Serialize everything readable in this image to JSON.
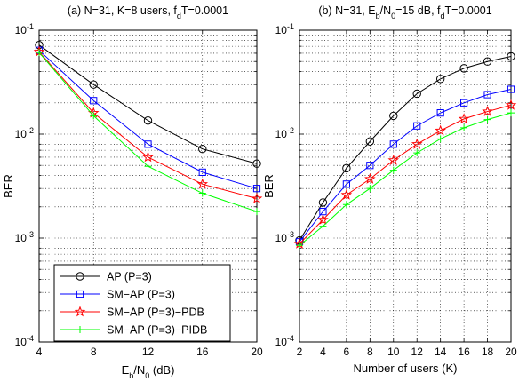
{
  "chart_data": [
    {
      "type": "line",
      "title": "(a) N=31, K=8 users, f_dT=0.0001",
      "title_parts": [
        "(a) N=31, K=8 users, f",
        "d",
        "T=0.0001"
      ],
      "xlabel": "E_b/N_0 (dB)",
      "xlabel_parts": [
        "E",
        "b",
        "/N",
        "0",
        " (dB)"
      ],
      "ylabel": "BER",
      "x": [
        4,
        8,
        12,
        16,
        20
      ],
      "xticks": [
        "4",
        "8",
        "12",
        "16",
        "20"
      ],
      "xlim": [
        4,
        20
      ],
      "ylim": [
        0.0001,
        0.1
      ],
      "yscale": "log",
      "yticks": [
        {
          "base": "10",
          "exp": "-4"
        },
        {
          "base": "10",
          "exp": "-3"
        },
        {
          "base": "10",
          "exp": "-2"
        },
        {
          "base": "10",
          "exp": "-1"
        }
      ],
      "grid": true,
      "legend_position": "bottom-left",
      "series": [
        {
          "name": "AP (P=3)",
          "color": "#000000",
          "marker": "circle",
          "values": [
            0.072,
            0.03,
            0.0135,
            0.0072,
            0.0052
          ]
        },
        {
          "name": "SM−AP (P=3)",
          "color": "#0000ff",
          "marker": "square",
          "values": [
            0.064,
            0.021,
            0.008,
            0.0043,
            0.003
          ]
        },
        {
          "name": "SM−AP (P=3)−PDB",
          "color": "#ff0000",
          "marker": "star",
          "values": [
            0.062,
            0.016,
            0.006,
            0.0033,
            0.0024
          ]
        },
        {
          "name": "SM−AP (P=3)−PIDB",
          "color": "#00ff00",
          "marker": "plus",
          "values": [
            0.061,
            0.015,
            0.0049,
            0.0027,
            0.0018
          ]
        }
      ]
    },
    {
      "type": "line",
      "title": "(b) N=31, E_b/N_0=15 dB, f_dT=0.0001",
      "title_parts": [
        "(b) N=31, E",
        "b",
        "/N",
        "0",
        "=15 dB, f",
        "d",
        "T=0.0001"
      ],
      "xlabel": "Number of users (K)",
      "ylabel": "BER",
      "x": [
        2,
        4,
        6,
        8,
        10,
        12,
        14,
        16,
        18,
        20
      ],
      "xticks": [
        "2",
        "4",
        "6",
        "8",
        "10",
        "12",
        "14",
        "16",
        "18",
        "20"
      ],
      "xlim": [
        2,
        20
      ],
      "ylim": [
        0.0001,
        0.1
      ],
      "yscale": "log",
      "yticks": [
        {
          "base": "10",
          "exp": "-4"
        },
        {
          "base": "10",
          "exp": "-3"
        },
        {
          "base": "10",
          "exp": "-2"
        },
        {
          "base": "10",
          "exp": "-1"
        }
      ],
      "grid": true,
      "series": [
        {
          "name": "AP (P=3)",
          "color": "#000000",
          "marker": "circle",
          "values": [
            0.00095,
            0.0022,
            0.0047,
            0.0085,
            0.015,
            0.0245,
            0.034,
            0.043,
            0.05,
            0.056
          ]
        },
        {
          "name": "SM−AP (P=3)",
          "color": "#0000ff",
          "marker": "square",
          "values": [
            0.00092,
            0.0018,
            0.0033,
            0.005,
            0.008,
            0.012,
            0.016,
            0.02,
            0.024,
            0.027
          ]
        },
        {
          "name": "SM−AP (P=3)−PDB",
          "color": "#ff0000",
          "marker": "star",
          "values": [
            0.00088,
            0.0015,
            0.0026,
            0.0037,
            0.0056,
            0.008,
            0.0108,
            0.014,
            0.0165,
            0.019
          ]
        },
        {
          "name": "SM−AP (P=3)−PIDB",
          "color": "#00ff00",
          "marker": "plus",
          "values": [
            0.00085,
            0.0013,
            0.0021,
            0.003,
            0.0045,
            0.0066,
            0.009,
            0.0115,
            0.0138,
            0.016
          ]
        }
      ]
    }
  ]
}
